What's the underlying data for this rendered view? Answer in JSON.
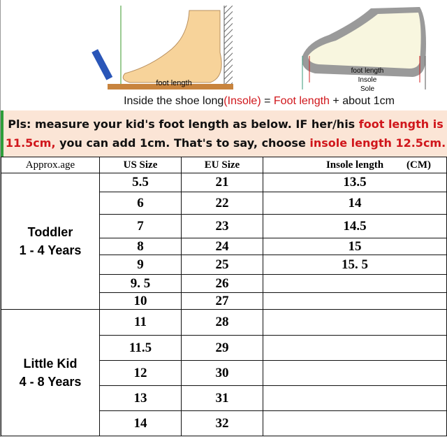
{
  "illustration": {
    "left_label": "foot length",
    "right_labels": [
      "foot length",
      "Insole",
      "Sole"
    ]
  },
  "formula": {
    "part1": "Inside the shoe long",
    "part2": "(Insole)",
    "part3": " = ",
    "part4": "Foot length",
    "part5": " + about 1cm"
  },
  "banner": {
    "t1": "Pls: measure your kid's foot length as below. IF her/his ",
    "t2": "foot length is 11.5cm,",
    "t3": " you can add 1cm. That's to say, choose ",
    "t4": "insole length 12.5cm."
  },
  "colors": {
    "accent_red": "#d0161b",
    "banner_bg": "#fbe5d6"
  },
  "table": {
    "headers": {
      "age": "Approx.age",
      "us": "US Size",
      "eu": "EU Size",
      "insole": "Insole length",
      "unit": "(CM)"
    },
    "groups": [
      {
        "name": "Toddler",
        "range": "1 - 4 Years",
        "rows": [
          {
            "us": "5.5",
            "eu": "21",
            "insole": "13.5"
          },
          {
            "us": "6",
            "eu": "22",
            "insole": "14"
          },
          {
            "us": "7",
            "eu": "23",
            "insole": "14.5"
          },
          {
            "us": "8",
            "eu": "24",
            "insole": "15"
          },
          {
            "us": "9",
            "eu": "25",
            "insole": "15. 5"
          },
          {
            "us": "9. 5",
            "eu": "26",
            "insole": ""
          },
          {
            "us": "10",
            "eu": "27",
            "insole": ""
          }
        ]
      },
      {
        "name": "Little Kid",
        "range": "4 - 8 Years",
        "rows": [
          {
            "us": "11",
            "eu": "28",
            "insole": ""
          },
          {
            "us": "11.5",
            "eu": "29",
            "insole": ""
          },
          {
            "us": "12",
            "eu": "30",
            "insole": ""
          },
          {
            "us": "13",
            "eu": "31",
            "insole": ""
          },
          {
            "us": "14",
            "eu": "32",
            "insole": ""
          }
        ]
      }
    ]
  }
}
